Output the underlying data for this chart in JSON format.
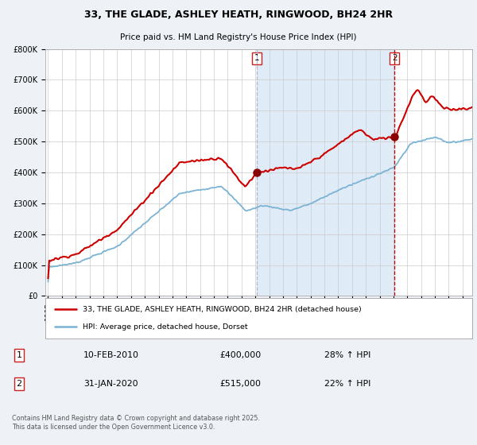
{
  "title_line1": "33, THE GLADE, ASHLEY HEATH, RINGWOOD, BH24 2HR",
  "title_line2": "Price paid vs. HM Land Registry's House Price Index (HPI)",
  "legend_label1": "33, THE GLADE, ASHLEY HEATH, RINGWOOD, BH24 2HR (detached house)",
  "legend_label2": "HPI: Average price, detached house, Dorset",
  "transaction1_date": "10-FEB-2010",
  "transaction1_price": "£400,000",
  "transaction1_hpi": "28% ↑ HPI",
  "transaction1_year": 2010.1,
  "transaction1_value": 400000,
  "transaction2_date": "31-JAN-2020",
  "transaction2_price": "£515,000",
  "transaction2_hpi": "22% ↑ HPI",
  "transaction2_year": 2020.08,
  "transaction2_value": 515000,
  "hpi_color": "#7ab3d4",
  "price_color": "#cc0000",
  "marker_color": "#8b0000",
  "vline1_color": "#b0b8cc",
  "vline2_color": "#cc0000",
  "shade_color": "#dae8f5",
  "background_color": "#eef2f7",
  "plot_bg_color": "#ffffff",
  "grid_color": "#cccccc",
  "ylim": [
    0,
    800000
  ],
  "xlim_start": 1994.8,
  "xlim_end": 2025.7,
  "footer_text": "Contains HM Land Registry data © Crown copyright and database right 2025.\nThis data is licensed under the Open Government Licence v3.0."
}
